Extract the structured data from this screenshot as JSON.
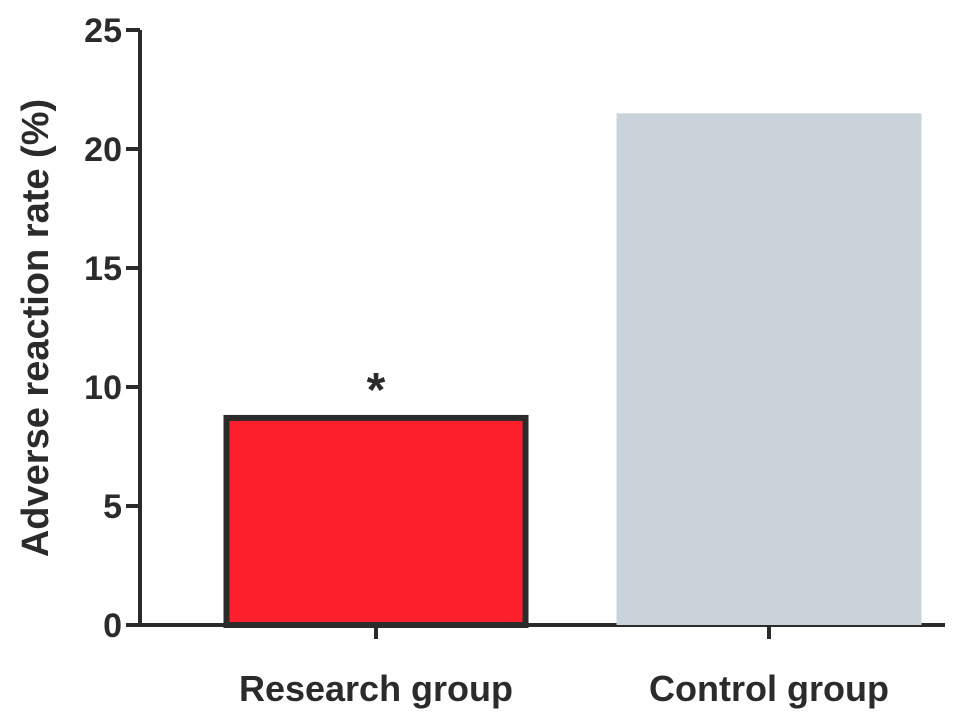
{
  "chart_data": {
    "type": "bar",
    "categories": [
      "Research group",
      "Control group"
    ],
    "values": [
      8.7,
      21.5
    ],
    "ylabel": "Adverse reaction rate (%)",
    "xlabel": "",
    "ylim": [
      0,
      25
    ],
    "yticks": [
      0,
      5,
      10,
      15,
      20,
      25
    ],
    "grid": false,
    "colors": [
      "#fe1f2c",
      "#cbd3da"
    ],
    "bar_outline": [
      true,
      false
    ],
    "outline_color": "#2b2b2b",
    "annotations": [
      {
        "category": "Research group",
        "text": "*"
      }
    ]
  }
}
